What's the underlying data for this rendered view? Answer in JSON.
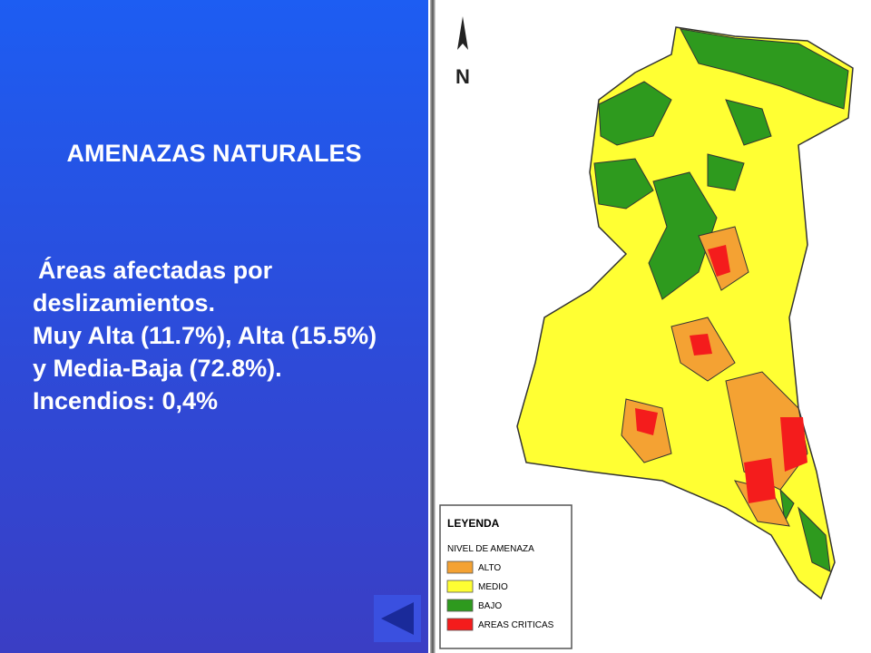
{
  "slide": {
    "title": "AMENAZAS NATURALES",
    "body": [
      "Áreas afectadas por deslizamientos.",
      "Muy Alta (11.7%), Alta (15.5%) y Media-Baja (72.8%).",
      "Incendios: 0,4%"
    ],
    "map": {
      "north_label": "N",
      "legend": {
        "title": "LEYENDA",
        "subtitle": "NIVEL DE AMENAZA",
        "items": [
          {
            "label": "ALTO",
            "color": "#f4a233"
          },
          {
            "label": "MEDIO",
            "color": "#ffff33"
          },
          {
            "label": "BAJO",
            "color": "#2e9a1e"
          },
          {
            "label": "AREAS CRITICAS",
            "color": "#f41c1c"
          }
        ]
      }
    }
  }
}
